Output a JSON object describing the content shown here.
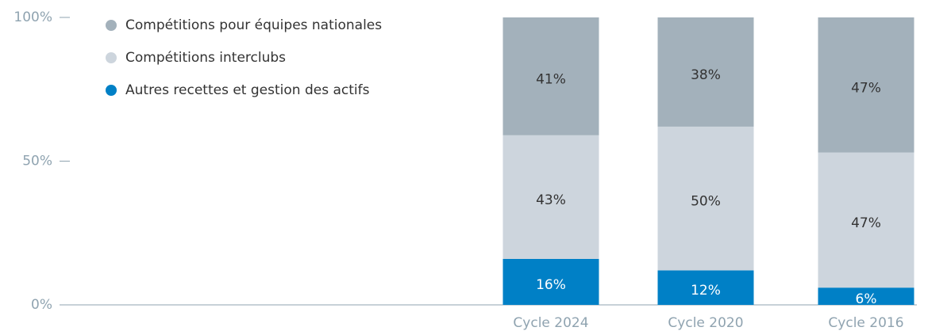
{
  "chart_data": {
    "type": "stacked_bar",
    "categories": [
      "Cycle 2024",
      "Cycle 2020",
      "Cycle 2016"
    ],
    "series": [
      {
        "name": "Compétitions pour équipes nationales",
        "color": "#a3b1bb",
        "values": [
          41,
          38,
          47
        ],
        "value_labels": [
          "41%",
          "38%",
          "47%"
        ]
      },
      {
        "name": "Compétitions interclubs",
        "color": "#cdd5dd",
        "values": [
          43,
          50,
          47
        ],
        "value_labels": [
          "43%",
          "50%",
          "47%"
        ]
      },
      {
        "name": "Autres recettes et gestion des actifs",
        "color": "#0080c6",
        "values": [
          16,
          12,
          6
        ],
        "value_labels": [
          "16%",
          "12%",
          "6%"
        ]
      }
    ],
    "ylim": [
      0,
      100
    ],
    "yticks": [
      {
        "value": 0,
        "label": "0%"
      },
      {
        "value": 50,
        "label": "50%"
      },
      {
        "value": 100,
        "label": "100%"
      }
    ]
  }
}
